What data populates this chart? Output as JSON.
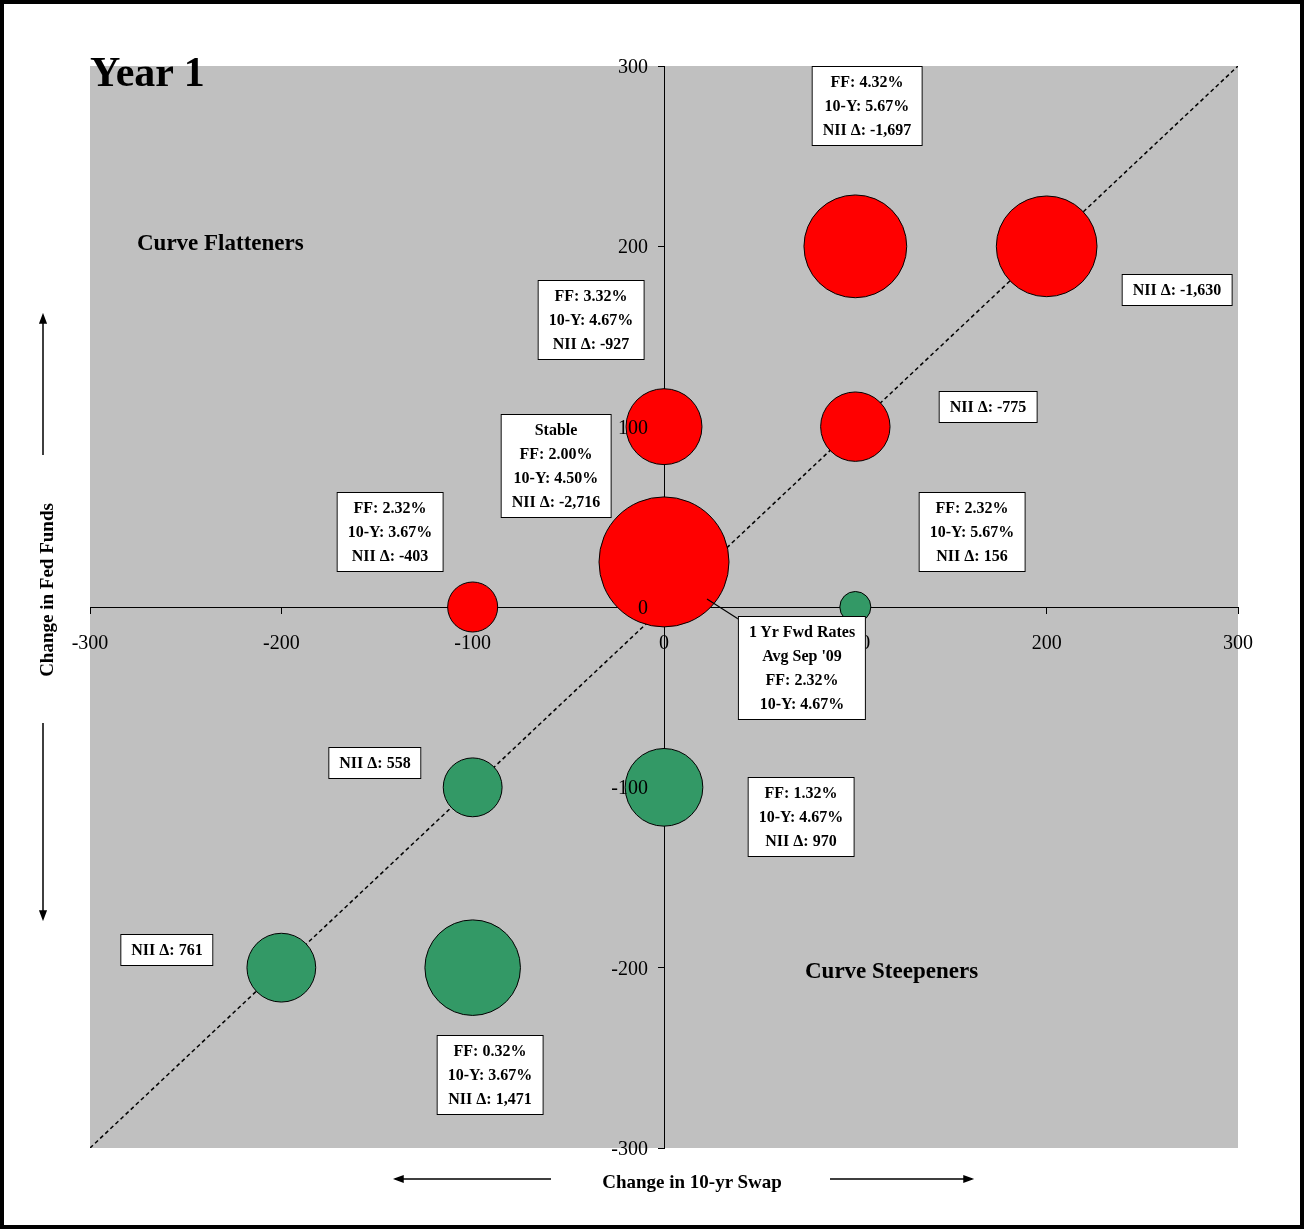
{
  "chart_data": {
    "type": "bubble",
    "title": "Year 1",
    "xlabel": "Change in 10-yr Swap",
    "ylabel": "Change in Fed Funds",
    "xlim": [
      -300,
      300
    ],
    "ylim": [
      -300,
      300
    ],
    "xticks": [
      -300,
      -200,
      -100,
      0,
      100,
      200,
      300
    ],
    "yticks": [
      -300,
      -200,
      -100,
      0,
      100,
      200,
      300
    ],
    "legend": false,
    "series": [
      {
        "color": "#ff0000",
        "x": [
          0,
          100,
          200,
          0,
          100,
          -100
        ],
        "values": [
          25,
          200,
          200,
          100,
          100,
          0
        ],
        "sizes": [
          1,
          0.625,
          0.6,
          0.341,
          0.285,
          0.148
        ]
      },
      {
        "color": "#339966",
        "x": [
          100,
          -100,
          0,
          -200,
          -100
        ],
        "values": [
          0,
          -100,
          -100,
          -200,
          -200
        ],
        "sizes": [
          0.057,
          0.205,
          0.357,
          0.28,
          0.54
        ]
      },
      {
        "type": "line",
        "color": "#000000",
        "line_style": "dashed",
        "x": [
          -300,
          300
        ],
        "values": [
          -300,
          300
        ]
      }
    ],
    "annotations": [
      "Curve Flatteners",
      "Curve Steepeners",
      "FF: 4.32%\n10-Y: 5.67%\nNII Δ: -1,697",
      "NII Δ: -1,630",
      "FF: 3.32%\n10-Y: 4.67%\nNII Δ: -927",
      "NII Δ: -775",
      "Stable\nFF: 2.00%\n10-Y: 4.50%\nNII Δ: -2,716",
      "FF: 2.32%\n10-Y: 3.67%\nNII Δ: -403",
      "FF: 2.32%\n10-Y: 5.67%\nNII Δ: 156",
      "1 Yr Fwd Rates\nAvg Sep '09\nFF: 2.32%\n10-Y: 4.67%",
      "NII Δ: 558",
      "FF: 1.32%\n10-Y: 4.67%\nNII Δ: 970",
      "NII Δ: 761",
      "FF: 0.32%\n10-Y: 3.67%\nNII Δ: 1,471"
    ]
  }
}
